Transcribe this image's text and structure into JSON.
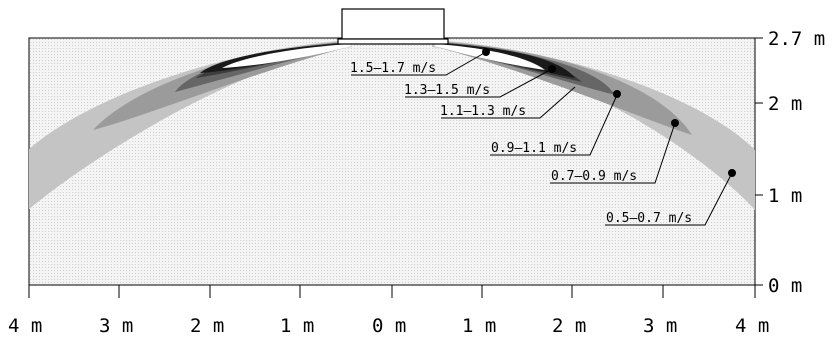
{
  "diagram": {
    "x_axis_ticks": [
      "4 m",
      "3 m",
      "2 m",
      "1 m",
      "0 m",
      "1 m",
      "2 m",
      "3 m",
      "4 m"
    ],
    "y_axis_ticks": [
      "2.7 m",
      "2 m",
      "1 m",
      "0 m"
    ],
    "zones": [
      {
        "label": "1.5–1.7 m/s",
        "value_range": [
          1.5,
          1.7
        ],
        "shade": "#ffffff"
      },
      {
        "label": "1.3–1.5 m/s",
        "value_range": [
          1.3,
          1.5
        ],
        "shade": "#1a1a1a"
      },
      {
        "label": "1.1–1.3 m/s",
        "value_range": [
          1.1,
          1.3
        ],
        "shade": "#3d3d3d"
      },
      {
        "label": "0.9–1.1 m/s",
        "value_range": [
          0.9,
          1.1
        ],
        "shade": "#666666"
      },
      {
        "label": "0.7–0.9 m/s",
        "value_range": [
          0.7,
          0.9
        ],
        "shade": "#9b9b9b"
      },
      {
        "label": "0.5–0.7 m/s",
        "value_range": [
          0.5,
          0.7
        ],
        "shade": "#c4c4c4"
      }
    ],
    "background_shade": "#ececec",
    "ceiling_unit_icon": "ceiling-air-conditioner-icon"
  }
}
